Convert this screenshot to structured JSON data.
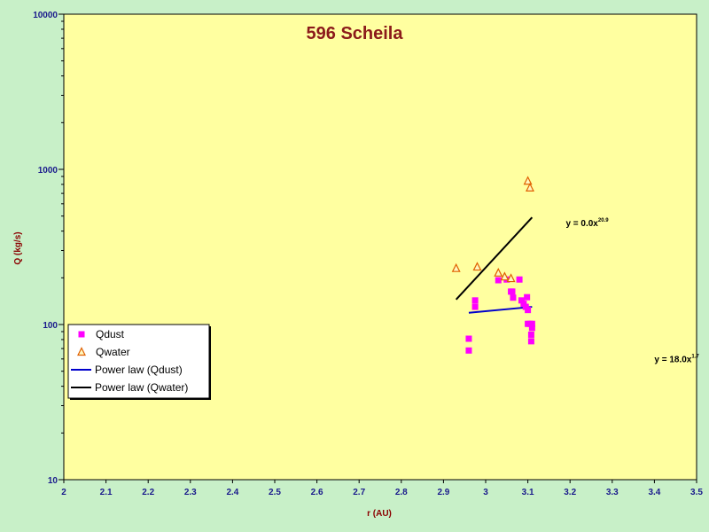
{
  "chart_data": {
    "type": "scatter",
    "title": "596 Scheila",
    "xlabel": "r (AU)",
    "ylabel": "Q (kg/s)",
    "xlim": [
      2,
      3.5
    ],
    "ylim": [
      10,
      10000
    ],
    "yscale": "log",
    "x_ticks": [
      "2",
      "2.1",
      "2.2",
      "2.3",
      "2.4",
      "2.5",
      "2.6",
      "2.7",
      "2.8",
      "2.9",
      "3",
      "3.1",
      "3.2",
      "3.3",
      "3.4",
      "3.5"
    ],
    "y_ticks": [
      "10",
      "100",
      "1000",
      "10000"
    ],
    "grid": false,
    "legend_position": "bottom-left",
    "colors": {
      "plot_background": "#ffffa0",
      "outer_background": "#c8f0c8",
      "qdust": "#ff00ff",
      "qwater_stroke": "#e06000",
      "power_dust": "#0000cc",
      "power_water": "#000000"
    },
    "series": [
      {
        "name": "Qdust",
        "marker": "square",
        "points": [
          [
            2.96,
            68
          ],
          [
            2.96,
            81
          ],
          [
            2.975,
            130
          ],
          [
            2.975,
            143
          ],
          [
            3.03,
            193
          ],
          [
            3.05,
            195
          ],
          [
            3.06,
            163
          ],
          [
            3.063,
            163
          ],
          [
            3.065,
            149
          ],
          [
            3.08,
            195
          ],
          [
            3.085,
            143
          ],
          [
            3.09,
            136
          ],
          [
            3.095,
            130
          ],
          [
            3.098,
            150
          ],
          [
            3.1,
            124
          ],
          [
            3.1,
            101
          ],
          [
            3.105,
            101
          ],
          [
            3.108,
            78
          ],
          [
            3.108,
            86
          ],
          [
            3.11,
            95
          ],
          [
            3.11,
            101
          ]
        ]
      },
      {
        "name": "Qwater",
        "marker": "triangle",
        "points": [
          [
            2.93,
            230
          ],
          [
            2.98,
            235
          ],
          [
            3.03,
            215
          ],
          [
            3.045,
            203
          ],
          [
            3.06,
            198
          ],
          [
            3.1,
            840
          ],
          [
            3.105,
            760
          ]
        ]
      },
      {
        "name": "Power law (Qdust)",
        "line": [
          [
            2.96,
            119
          ],
          [
            3.11,
            130
          ]
        ]
      },
      {
        "name": "Power law (Qwater)",
        "line": [
          [
            2.93,
            145
          ],
          [
            3.11,
            490
          ]
        ]
      }
    ],
    "annotations": [
      {
        "base": "y = 0.0x",
        "exp": "20.9",
        "x": 3.19,
        "y": 430
      },
      {
        "base": "y = 18.0x",
        "exp": "1.7",
        "x": 3.4,
        "y": 57
      }
    ]
  }
}
